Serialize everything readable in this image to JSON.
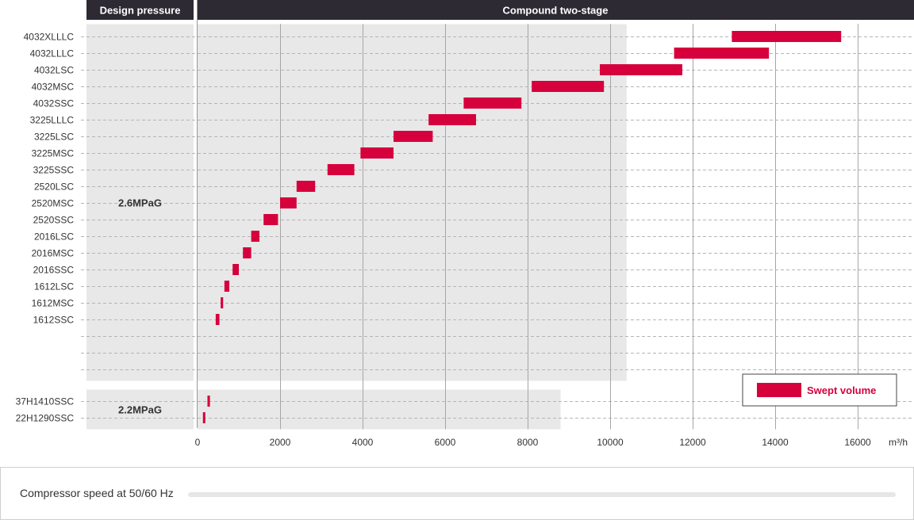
{
  "chart_data": {
    "type": "bar",
    "orientation": "horizontal-range",
    "header_left": "Design pressure",
    "header_right": "Compound two-stage",
    "unit_label": "m³/h",
    "xlim": [
      0,
      17000
    ],
    "xticks": [
      "0",
      "2000",
      "4000",
      "6000",
      "8000",
      "10000",
      "12000",
      "14000",
      "16000"
    ],
    "xtick_values": [
      0,
      2000,
      4000,
      6000,
      8000,
      10000,
      12000,
      14000,
      16000
    ],
    "grid": true,
    "legend": {
      "label": "Swept volume",
      "position": "bottom-right",
      "color": "#d5003c"
    },
    "bar_color": "#d5003c",
    "groups": [
      {
        "pressure": "2.6MPaG",
        "band_end": 10400,
        "empty_rows": 3,
        "models": [
          {
            "name": "4032XLLLC",
            "start": 12950,
            "end": 15600
          },
          {
            "name": "4032LLLC",
            "start": 11550,
            "end": 13850
          },
          {
            "name": "4032LSC",
            "start": 9750,
            "end": 11750
          },
          {
            "name": "4032MSC",
            "start": 8100,
            "end": 9850
          },
          {
            "name": "4032SSC",
            "start": 6450,
            "end": 7850
          },
          {
            "name": "3225LLLC",
            "start": 5600,
            "end": 6750
          },
          {
            "name": "3225LSC",
            "start": 4750,
            "end": 5700
          },
          {
            "name": "3225MSC",
            "start": 3950,
            "end": 4750
          },
          {
            "name": "3225SSC",
            "start": 3150,
            "end": 3800
          },
          {
            "name": "2520LSC",
            "start": 2400,
            "end": 2850
          },
          {
            "name": "2520MSC",
            "start": 2000,
            "end": 2400
          },
          {
            "name": "2520SSC",
            "start": 1600,
            "end": 1950
          },
          {
            "name": "2016LSC",
            "start": 1300,
            "end": 1500
          },
          {
            "name": "2016MSC",
            "start": 1100,
            "end": 1300
          },
          {
            "name": "2016SSC",
            "start": 850,
            "end": 1000
          },
          {
            "name": "1612LSC",
            "start": 650,
            "end": 770
          },
          {
            "name": "1612MSC",
            "start": 560,
            "end": 620
          },
          {
            "name": "1612SSC",
            "start": 440,
            "end": 530
          }
        ]
      },
      {
        "pressure": "2.2MPaG",
        "band_end": 8800,
        "empty_rows": 0,
        "models": [
          {
            "name": "37H1410SSC",
            "start": 240,
            "end": 300
          },
          {
            "name": "22H1290SSC",
            "start": 130,
            "end": 180
          }
        ]
      }
    ]
  },
  "footer": {
    "label": "Compressor speed at 50/60 Hz"
  }
}
